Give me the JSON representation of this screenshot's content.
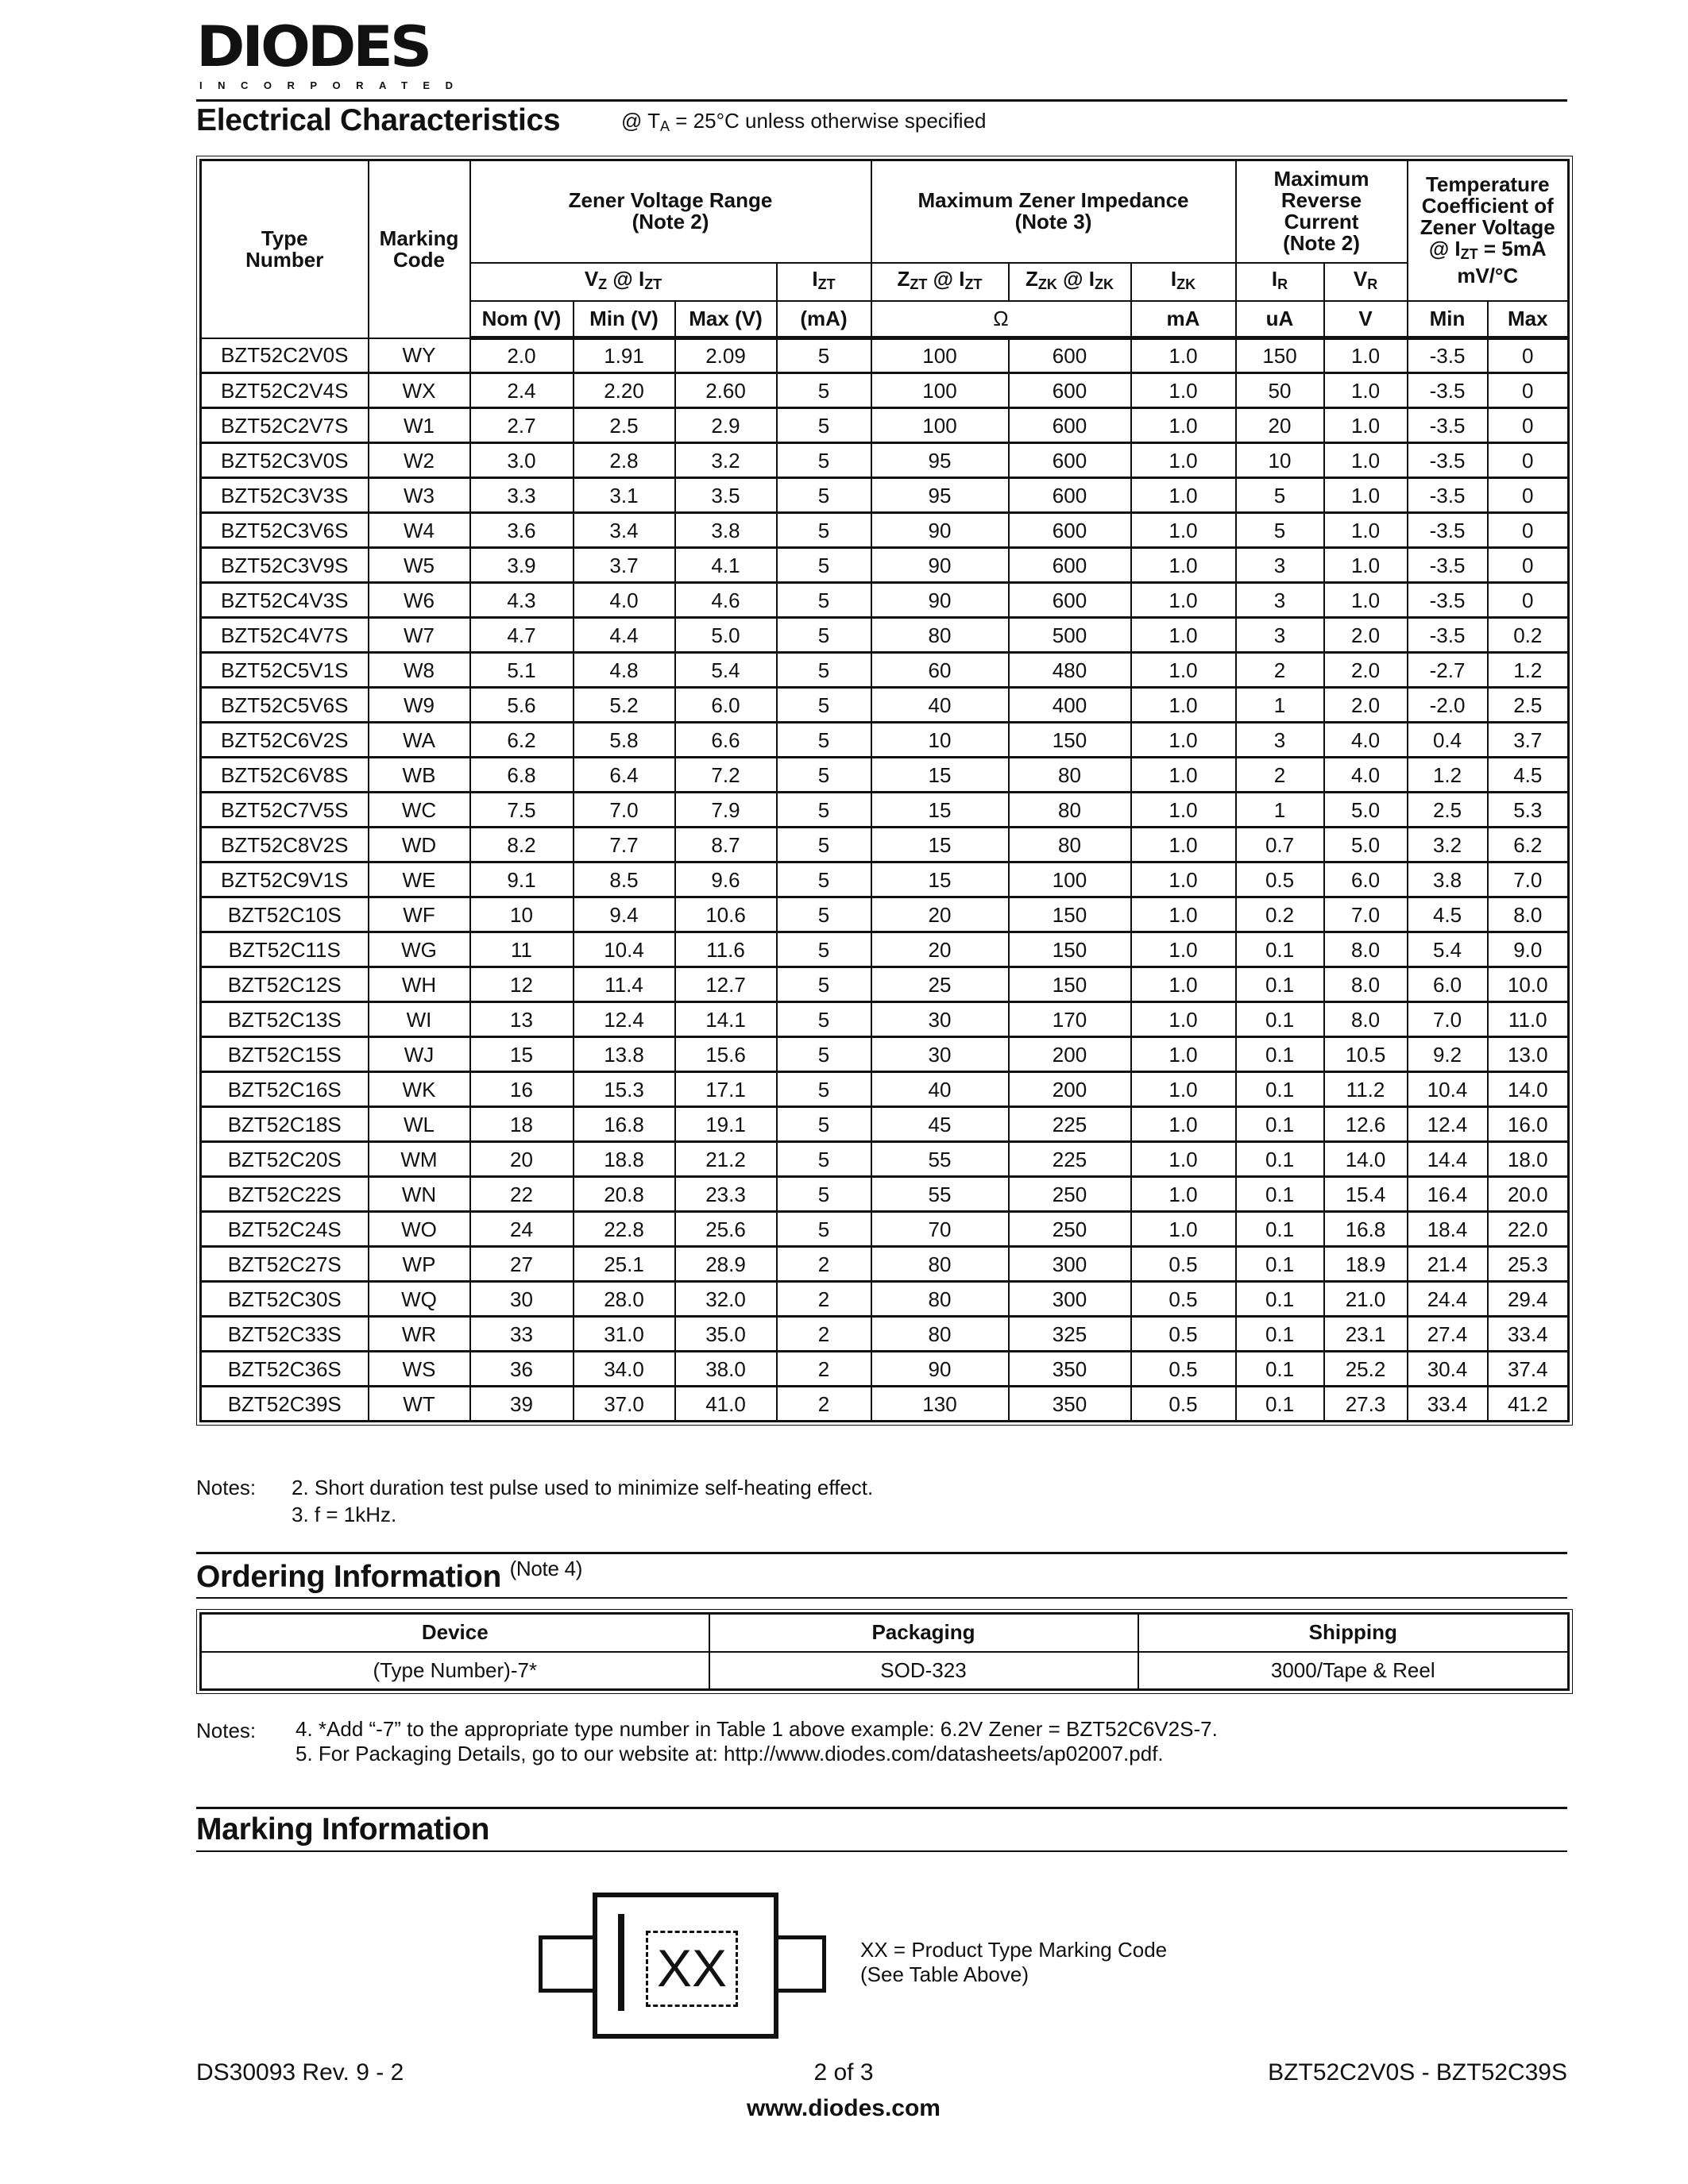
{
  "logo": {
    "name": "DIODES",
    "sub": "INCORPORATED"
  },
  "electrical": {
    "title": "Electrical Characteristics",
    "condition_pre": "@ T",
    "condition_sub": "A",
    "condition_post": " = 25°C unless otherwise specified",
    "headers": {
      "type_number": "Type Number",
      "marking_code": "Marking Code",
      "zener_voltage_range": "Zener Voltage Range",
      "zener_voltage_note": "(Note 2)",
      "max_zener_impedance": "Maximum Zener Impedance",
      "max_zener_impedance_note": "(Note 3)",
      "max_reverse_current": "Maximum Reverse Current",
      "max_reverse_current_note": "(Note 2)",
      "temp_coeff": "Temperature Coefficient of Zener Voltage",
      "temp_coeff_cond_pre": "@ I",
      "temp_coeff_cond_sub": "ZT",
      "temp_coeff_cond_post": " = 5mA",
      "temp_coeff_unit": "mV/°C",
      "vz": {
        "a": "V",
        "as": "Z",
        "b": " @ I",
        "bs": "ZT"
      },
      "izt": {
        "a": "I",
        "as": "ZT"
      },
      "zzt": {
        "a": "Z",
        "as": "ZT",
        "b": " @ I",
        "bs": "ZT"
      },
      "zzk": {
        "a": "Z",
        "as": "ZK",
        "b": " @ I",
        "bs": "ZK"
      },
      "izk": {
        "a": "I",
        "as": "ZK"
      },
      "ir": {
        "a": "I",
        "as": "R"
      },
      "vr": {
        "a": "V",
        "as": "R"
      },
      "units": [
        "Nom (V)",
        "Min (V)",
        "Max (V)",
        "(mA)",
        "Ω",
        "mA",
        "uA",
        "V",
        "Min",
        "Max"
      ]
    },
    "rows": [
      [
        "BZT52C2V0S",
        "WY",
        "2.0",
        "1.91",
        "2.09",
        "5",
        "100",
        "600",
        "1.0",
        "150",
        "1.0",
        "-3.5",
        "0"
      ],
      [
        "BZT52C2V4S",
        "WX",
        "2.4",
        "2.20",
        "2.60",
        "5",
        "100",
        "600",
        "1.0",
        "50",
        "1.0",
        "-3.5",
        "0"
      ],
      [
        "BZT52C2V7S",
        "W1",
        "2.7",
        "2.5",
        "2.9",
        "5",
        "100",
        "600",
        "1.0",
        "20",
        "1.0",
        "-3.5",
        "0"
      ],
      [
        "BZT52C3V0S",
        "W2",
        "3.0",
        "2.8",
        "3.2",
        "5",
        "95",
        "600",
        "1.0",
        "10",
        "1.0",
        "-3.5",
        "0"
      ],
      [
        "BZT52C3V3S",
        "W3",
        "3.3",
        "3.1",
        "3.5",
        "5",
        "95",
        "600",
        "1.0",
        "5",
        "1.0",
        "-3.5",
        "0"
      ],
      [
        "BZT52C3V6S",
        "W4",
        "3.6",
        "3.4",
        "3.8",
        "5",
        "90",
        "600",
        "1.0",
        "5",
        "1.0",
        "-3.5",
        "0"
      ],
      [
        "BZT52C3V9S",
        "W5",
        "3.9",
        "3.7",
        "4.1",
        "5",
        "90",
        "600",
        "1.0",
        "3",
        "1.0",
        "-3.5",
        "0"
      ],
      [
        "BZT52C4V3S",
        "W6",
        "4.3",
        "4.0",
        "4.6",
        "5",
        "90",
        "600",
        "1.0",
        "3",
        "1.0",
        "-3.5",
        "0"
      ],
      [
        "BZT52C4V7S",
        "W7",
        "4.7",
        "4.4",
        "5.0",
        "5",
        "80",
        "500",
        "1.0",
        "3",
        "2.0",
        "-3.5",
        "0.2"
      ],
      [
        "BZT52C5V1S",
        "W8",
        "5.1",
        "4.8",
        "5.4",
        "5",
        "60",
        "480",
        "1.0",
        "2",
        "2.0",
        "-2.7",
        "1.2"
      ],
      [
        "BZT52C5V6S",
        "W9",
        "5.6",
        "5.2",
        "6.0",
        "5",
        "40",
        "400",
        "1.0",
        "1",
        "2.0",
        "-2.0",
        "2.5"
      ],
      [
        "BZT52C6V2S",
        "WA",
        "6.2",
        "5.8",
        "6.6",
        "5",
        "10",
        "150",
        "1.0",
        "3",
        "4.0",
        "0.4",
        "3.7"
      ],
      [
        "BZT52C6V8S",
        "WB",
        "6.8",
        "6.4",
        "7.2",
        "5",
        "15",
        "80",
        "1.0",
        "2",
        "4.0",
        "1.2",
        "4.5"
      ],
      [
        "BZT52C7V5S",
        "WC",
        "7.5",
        "7.0",
        "7.9",
        "5",
        "15",
        "80",
        "1.0",
        "1",
        "5.0",
        "2.5",
        "5.3"
      ],
      [
        "BZT52C8V2S",
        "WD",
        "8.2",
        "7.7",
        "8.7",
        "5",
        "15",
        "80",
        "1.0",
        "0.7",
        "5.0",
        "3.2",
        "6.2"
      ],
      [
        "BZT52C9V1S",
        "WE",
        "9.1",
        "8.5",
        "9.6",
        "5",
        "15",
        "100",
        "1.0",
        "0.5",
        "6.0",
        "3.8",
        "7.0"
      ],
      [
        "BZT52C10S",
        "WF",
        "10",
        "9.4",
        "10.6",
        "5",
        "20",
        "150",
        "1.0",
        "0.2",
        "7.0",
        "4.5",
        "8.0"
      ],
      [
        "BZT52C11S",
        "WG",
        "11",
        "10.4",
        "11.6",
        "5",
        "20",
        "150",
        "1.0",
        "0.1",
        "8.0",
        "5.4",
        "9.0"
      ],
      [
        "BZT52C12S",
        "WH",
        "12",
        "11.4",
        "12.7",
        "5",
        "25",
        "150",
        "1.0",
        "0.1",
        "8.0",
        "6.0",
        "10.0"
      ],
      [
        "BZT52C13S",
        "WI",
        "13",
        "12.4",
        "14.1",
        "5",
        "30",
        "170",
        "1.0",
        "0.1",
        "8.0",
        "7.0",
        "11.0"
      ],
      [
        "BZT52C15S",
        "WJ",
        "15",
        "13.8",
        "15.6",
        "5",
        "30",
        "200",
        "1.0",
        "0.1",
        "10.5",
        "9.2",
        "13.0"
      ],
      [
        "BZT52C16S",
        "WK",
        "16",
        "15.3",
        "17.1",
        "5",
        "40",
        "200",
        "1.0",
        "0.1",
        "11.2",
        "10.4",
        "14.0"
      ],
      [
        "BZT52C18S",
        "WL",
        "18",
        "16.8",
        "19.1",
        "5",
        "45",
        "225",
        "1.0",
        "0.1",
        "12.6",
        "12.4",
        "16.0"
      ],
      [
        "BZT52C20S",
        "WM",
        "20",
        "18.8",
        "21.2",
        "5",
        "55",
        "225",
        "1.0",
        "0.1",
        "14.0",
        "14.4",
        "18.0"
      ],
      [
        "BZT52C22S",
        "WN",
        "22",
        "20.8",
        "23.3",
        "5",
        "55",
        "250",
        "1.0",
        "0.1",
        "15.4",
        "16.4",
        "20.0"
      ],
      [
        "BZT52C24S",
        "WO",
        "24",
        "22.8",
        "25.6",
        "5",
        "70",
        "250",
        "1.0",
        "0.1",
        "16.8",
        "18.4",
        "22.0"
      ],
      [
        "BZT52C27S",
        "WP",
        "27",
        "25.1",
        "28.9",
        "2",
        "80",
        "300",
        "0.5",
        "0.1",
        "18.9",
        "21.4",
        "25.3"
      ],
      [
        "BZT52C30S",
        "WQ",
        "30",
        "28.0",
        "32.0",
        "2",
        "80",
        "300",
        "0.5",
        "0.1",
        "21.0",
        "24.4",
        "29.4"
      ],
      [
        "BZT52C33S",
        "WR",
        "33",
        "31.0",
        "35.0",
        "2",
        "80",
        "325",
        "0.5",
        "0.1",
        "23.1",
        "27.4",
        "33.4"
      ],
      [
        "BZT52C36S",
        "WS",
        "36",
        "34.0",
        "38.0",
        "2",
        "90",
        "350",
        "0.5",
        "0.1",
        "25.2",
        "30.4",
        "37.4"
      ],
      [
        "BZT52C39S",
        "WT",
        "39",
        "37.0",
        "41.0",
        "2",
        "130",
        "350",
        "0.5",
        "0.1",
        "27.3",
        "33.4",
        "41.2"
      ]
    ],
    "notes_label": "Notes:",
    "notes": [
      "2. Short duration test pulse used to minimize self-heating effect.",
      "3. f = 1kHz."
    ]
  },
  "ordering": {
    "title": "Ordering Information",
    "title_note": "(Note 4)",
    "headers": [
      "Device",
      "Packaging",
      "Shipping"
    ],
    "row": [
      "(Type Number)-7*",
      "SOD-323",
      "3000/Tape & Reel"
    ],
    "notes_label": "Notes:",
    "notes": [
      "4.  *Add “-7” to the appropriate type number in Table 1 above example: 6.2V Zener = BZT52C6V2S-7.",
      "5. For Packaging Details, go to our website at: http://www.diodes.com/datasheets/ap02007.pdf."
    ]
  },
  "marking": {
    "title": "Marking Information",
    "code": "XX",
    "legend_line1": "XX = Product Type Marking Code",
    "legend_line2": "(See Table Above)"
  },
  "footer": {
    "doc": "DS30093 Rev. 9 - 2",
    "page": "2 of 3",
    "part": "BZT52C2V0S - BZT52C39S",
    "website": "www.diodes.com"
  }
}
